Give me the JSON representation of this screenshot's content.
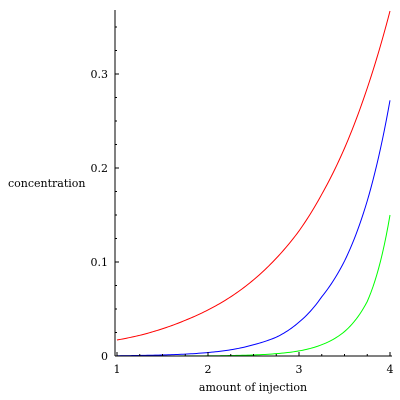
{
  "chart_data": {
    "type": "line",
    "xlabel": "amount of injection",
    "ylabel": "concentration",
    "xlim": [
      1,
      4
    ],
    "ylim": [
      0,
      0.37
    ],
    "xticks": [
      "1",
      "2",
      "3",
      "4"
    ],
    "yticks": [
      "0",
      "0.1",
      "0.2",
      "0.3"
    ],
    "grid": false,
    "series": [
      {
        "color": "#ff0000",
        "x": [
          1,
          1.25,
          1.5,
          1.75,
          2,
          2.25,
          2.5,
          2.75,
          3,
          3.25,
          3.5,
          3.75,
          4
        ],
        "y": [
          0.017,
          0.022,
          0.029,
          0.038,
          0.049,
          0.063,
          0.081,
          0.104,
          0.133,
          0.172,
          0.221,
          0.285,
          0.367
        ]
      },
      {
        "color": "#0000ff",
        "x": [
          1,
          1.25,
          1.5,
          1.75,
          2,
          2.25,
          2.5,
          2.75,
          3,
          3.25,
          3.5,
          3.75,
          4
        ],
        "y": [
          0.0003,
          0.0006,
          0.0011,
          0.002,
          0.0037,
          0.0066,
          0.012,
          0.02,
          0.036,
          0.063,
          0.101,
          0.165,
          0.272
        ]
      },
      {
        "color": "#00ff00",
        "x": [
          1,
          1.5,
          2,
          2.25,
          2.5,
          2.75,
          3,
          3.25,
          3.5,
          3.75,
          4
        ],
        "y": [
          0,
          0,
          0.0002,
          0.0005,
          0.0011,
          0.0025,
          0.0054,
          0.012,
          0.026,
          0.058,
          0.15
        ]
      }
    ]
  }
}
